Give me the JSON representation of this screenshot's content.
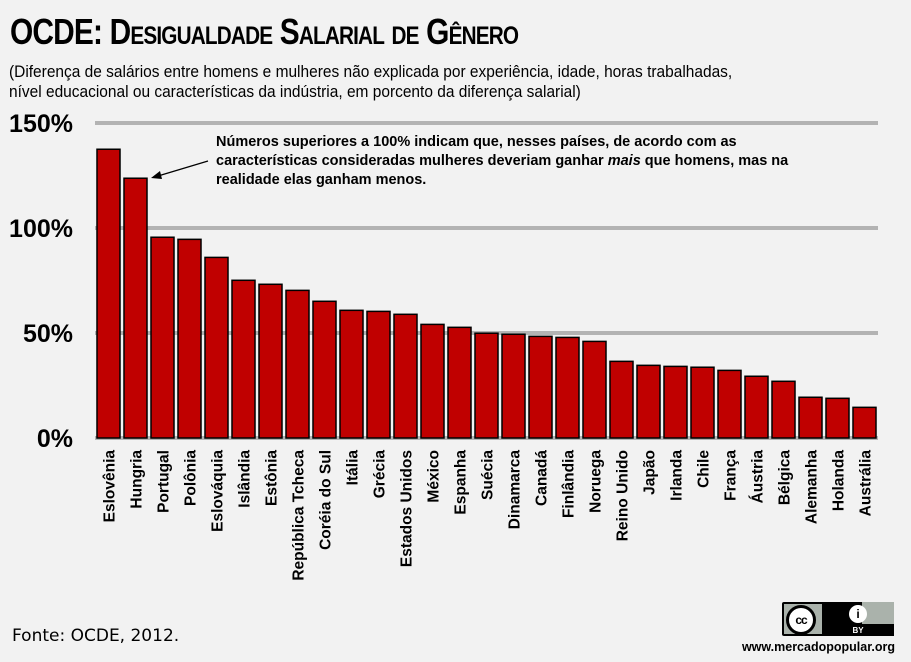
{
  "title": "OCDE: Desigualdade Salarial de Gênero",
  "subtitle": [
    "(Diferença de salários entre homens e mulheres não explicada por experiência, idade, horas trabalhadas,",
    "nível educacional ou características da indústria, em porcento da diferença salarial)"
  ],
  "annotation": {
    "line1": "Números superiores a 100% indicam que, nesses países, de acordo com as",
    "line2_before": "características  consideradas mulheres deveriam ganhar ",
    "line2_italic": "mais",
    "line2_after": " que homens, mas na",
    "line3": "realidade elas ganham menos.",
    "points_to": "Hungria"
  },
  "source": "Fonte: OCDE, 2012.",
  "license": {
    "icon": "creative-commons-by-icon",
    "cc_label": "cc",
    "by_label": "BY",
    "attribution_glyph": "i"
  },
  "website": "www.mercadopopular.org",
  "colors": {
    "bar": "#c00000",
    "background": "#f2f2f2",
    "grid": "#b3b3b3"
  },
  "chart_data": {
    "type": "bar",
    "title": "OCDE: Desigualdade Salarial de Gênero",
    "xlabel": "",
    "ylabel": "",
    "ylim": [
      0,
      150
    ],
    "yticks": [
      0,
      50,
      100,
      150
    ],
    "ytick_labels": [
      "0%",
      "50%",
      "100%",
      "150%"
    ],
    "grid": true,
    "legend": "none",
    "categories": [
      "Eslovênia",
      "Hungria",
      "Portugal",
      "Polônia",
      "Eslováquia",
      "Islândia",
      "Estônia",
      "República Tcheca",
      "Coréia do Sul",
      "Itália",
      "Grécia",
      "Estados Unidos",
      "México",
      "Espanha",
      "Suécia",
      "Dinamarca",
      "Canadá",
      "Finlândia",
      "Noruega",
      "Reino Unido",
      "Japão",
      "Irlanda",
      "Chile",
      "França",
      "Áustria",
      "Bélgica",
      "Alemanha",
      "Holanda",
      "Austrália"
    ],
    "values": [
      137.5,
      123.7,
      95.6,
      94.6,
      86.0,
      75.1,
      73.2,
      70.3,
      65.1,
      60.8,
      60.3,
      58.9,
      54.1,
      52.7,
      49.9,
      49.4,
      48.4,
      47.9,
      46.0,
      36.5,
      34.6,
      34.1,
      33.7,
      32.2,
      29.4,
      27.0,
      19.4,
      18.9,
      14.6
    ],
    "unit": "%"
  }
}
